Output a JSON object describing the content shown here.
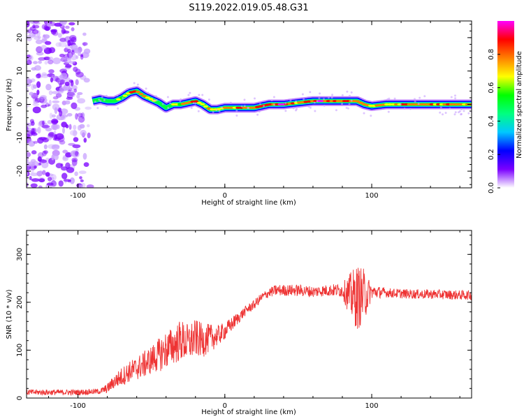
{
  "title": "S119.2022.019.05.48.G31",
  "chart_data": [
    {
      "type": "heatmap",
      "xlabel": "Height of straight line (km)",
      "ylabel": "Frequency (Hz)",
      "xlim": [
        -135,
        168
      ],
      "ylim": [
        -25,
        25
      ],
      "xticks": [
        -100,
        0,
        100
      ],
      "yticks": [
        -20,
        -10,
        0,
        10,
        20
      ],
      "colorbar": {
        "label": "Normalized spectral amplitude",
        "range": [
          0,
          1
        ],
        "ticks": [
          0.0,
          0.2,
          0.4,
          0.6,
          0.8
        ],
        "colors": [
          "#ffffff",
          "#7b00ff",
          "#0000ff",
          "#00c8ff",
          "#00ff80",
          "#00ff00",
          "#ffff00",
          "#ff8000",
          "#ff0000",
          "#ff00ff"
        ]
      },
      "ridge": {
        "x": [
          -90,
          -85,
          -80,
          -75,
          -70,
          -65,
          -60,
          -55,
          -50,
          -45,
          -40,
          -35,
          -30,
          -25,
          -20,
          -15,
          -10,
          -5,
          0,
          10,
          20,
          30,
          40,
          50,
          60,
          70,
          80,
          90,
          95,
          100,
          110,
          120,
          130,
          140,
          150,
          168
        ],
        "frequency": [
          1,
          1.5,
          1,
          1,
          2,
          3.5,
          4,
          2.5,
          1.5,
          0.5,
          -1,
          0,
          0,
          0.5,
          1,
          0,
          -1.5,
          -1.5,
          -1,
          -1,
          -1,
          0,
          0,
          0.5,
          1,
          1,
          1,
          1,
          0,
          -0.5,
          0,
          0,
          0,
          0,
          0,
          0
        ],
        "amplitude": [
          0.3,
          0.4,
          0.5,
          0.55,
          0.6,
          0.75,
          0.8,
          0.75,
          0.6,
          0.5,
          0.45,
          0.6,
          0.7,
          0.75,
          0.8,
          0.75,
          0.7,
          0.7,
          0.7,
          0.8,
          0.8,
          0.85,
          0.85,
          0.8,
          0.85,
          0.9,
          0.85,
          0.85,
          0.8,
          0.7,
          0.7,
          0.75,
          0.8,
          0.8,
          0.75,
          0.7
        ]
      },
      "noise_region_x": [
        -135,
        -90
      ]
    },
    {
      "type": "line",
      "xlabel": "Height of straight line (km)",
      "ylabel": "SNR (10 * v/v)",
      "xlim": [
        -135,
        168
      ],
      "ylim": [
        0,
        350
      ],
      "xticks": [
        -100,
        0,
        100
      ],
      "yticks": [
        0,
        100,
        200,
        300
      ],
      "color": "#ee3333",
      "series": [
        {
          "x": [
            -135,
            -120,
            -100,
            -85,
            -80,
            -75,
            -70,
            -65,
            -60,
            -55,
            -50,
            -45,
            -40,
            -35,
            -30,
            -25,
            -20,
            -15,
            -10,
            -5,
            0,
            5,
            10,
            15,
            20,
            25,
            30,
            35,
            40,
            50,
            60,
            70,
            80,
            85,
            90,
            95,
            100,
            110,
            120,
            130,
            140,
            150,
            160,
            168
          ],
          "y": [
            12,
            12,
            12,
            14,
            20,
            35,
            45,
            55,
            62,
            70,
            80,
            90,
            100,
            110,
            120,
            115,
            125,
            120,
            125,
            130,
            140,
            155,
            170,
            185,
            195,
            210,
            220,
            225,
            225,
            225,
            222,
            225,
            225,
            215,
            210,
            215,
            222,
            220,
            218,
            217,
            217,
            216,
            215,
            215
          ],
          "spread": [
            6,
            6,
            6,
            6,
            10,
            15,
            20,
            22,
            25,
            28,
            30,
            35,
            40,
            40,
            45,
            40,
            40,
            35,
            30,
            22,
            18,
            15,
            12,
            10,
            10,
            10,
            10,
            12,
            12,
            12,
            12,
            12,
            15,
            45,
            70,
            55,
            15,
            10,
            10,
            10,
            10,
            10,
            10,
            10
          ]
        }
      ]
    }
  ]
}
